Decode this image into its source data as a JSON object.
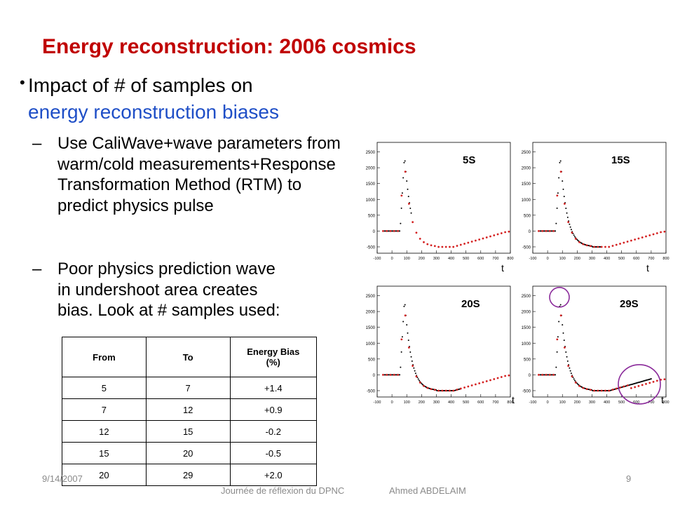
{
  "slide": {
    "title": "Energy reconstruction: 2006 cosmics",
    "bullet": {
      "text_black": "Impact of # of samples on",
      "text_blue": "energy reconstruction biases"
    },
    "subbullets": [
      "Use CaliWave+wave parameters from warm/cold measurements+Response Transformation Method (RTM) to predict physics pulse",
      "Poor physics prediction wave in undershoot area creates bias. Look at # samples used:"
    ]
  },
  "table": {
    "headers": [
      "From",
      "To",
      "Energy Bias (%)"
    ],
    "rows": [
      [
        "5",
        "7",
        "+1.4"
      ],
      [
        "7",
        "12",
        "+0.9"
      ],
      [
        "12",
        "15",
        "-0.2"
      ],
      [
        "15",
        "20",
        "-0.5"
      ],
      [
        "20",
        "29",
        "+2.0"
      ]
    ]
  },
  "plots": {
    "labels": [
      "5S",
      "15S",
      "20S",
      "29S"
    ],
    "axis_label": "t",
    "y_ticks": [
      "2500",
      "2000",
      "1500",
      "1000",
      "500",
      "0",
      "-500"
    ],
    "x_ticks": [
      "-100",
      "0",
      "100",
      "200",
      "300",
      "400",
      "500",
      "600",
      "700",
      "800"
    ],
    "colors": {
      "model": "#d42020",
      "data": "#000000",
      "highlight": "#8a2a9a"
    }
  },
  "footer": {
    "date": "9/14/2007",
    "center": "Journée de réflexion du DPNC",
    "author": "Ahmed ABDELAIM",
    "page": "9"
  }
}
